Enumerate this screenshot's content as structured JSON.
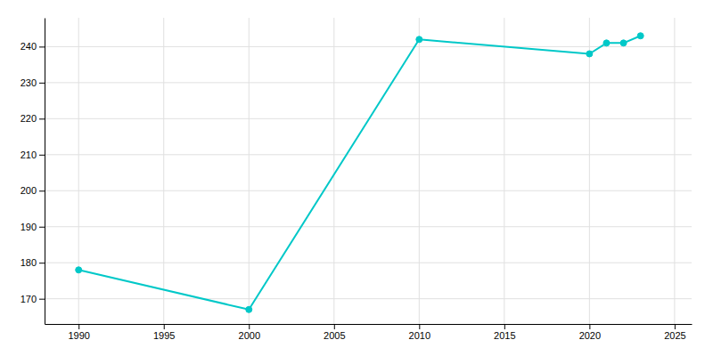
{
  "chart_data": {
    "type": "line",
    "x": [
      1990,
      2000,
      2010,
      2020,
      2021,
      2022,
      2023
    ],
    "values": [
      178,
      167,
      242,
      238,
      241,
      241,
      243
    ],
    "color": "#00C8C8",
    "marker": "circle",
    "xlim": [
      1988,
      2026
    ],
    "ylim": [
      163,
      248
    ],
    "xticks": [
      1990,
      1995,
      2000,
      2005,
      2010,
      2015,
      2020,
      2025
    ],
    "yticks": [
      170,
      180,
      190,
      200,
      210,
      220,
      230,
      240
    ],
    "grid": true
  }
}
